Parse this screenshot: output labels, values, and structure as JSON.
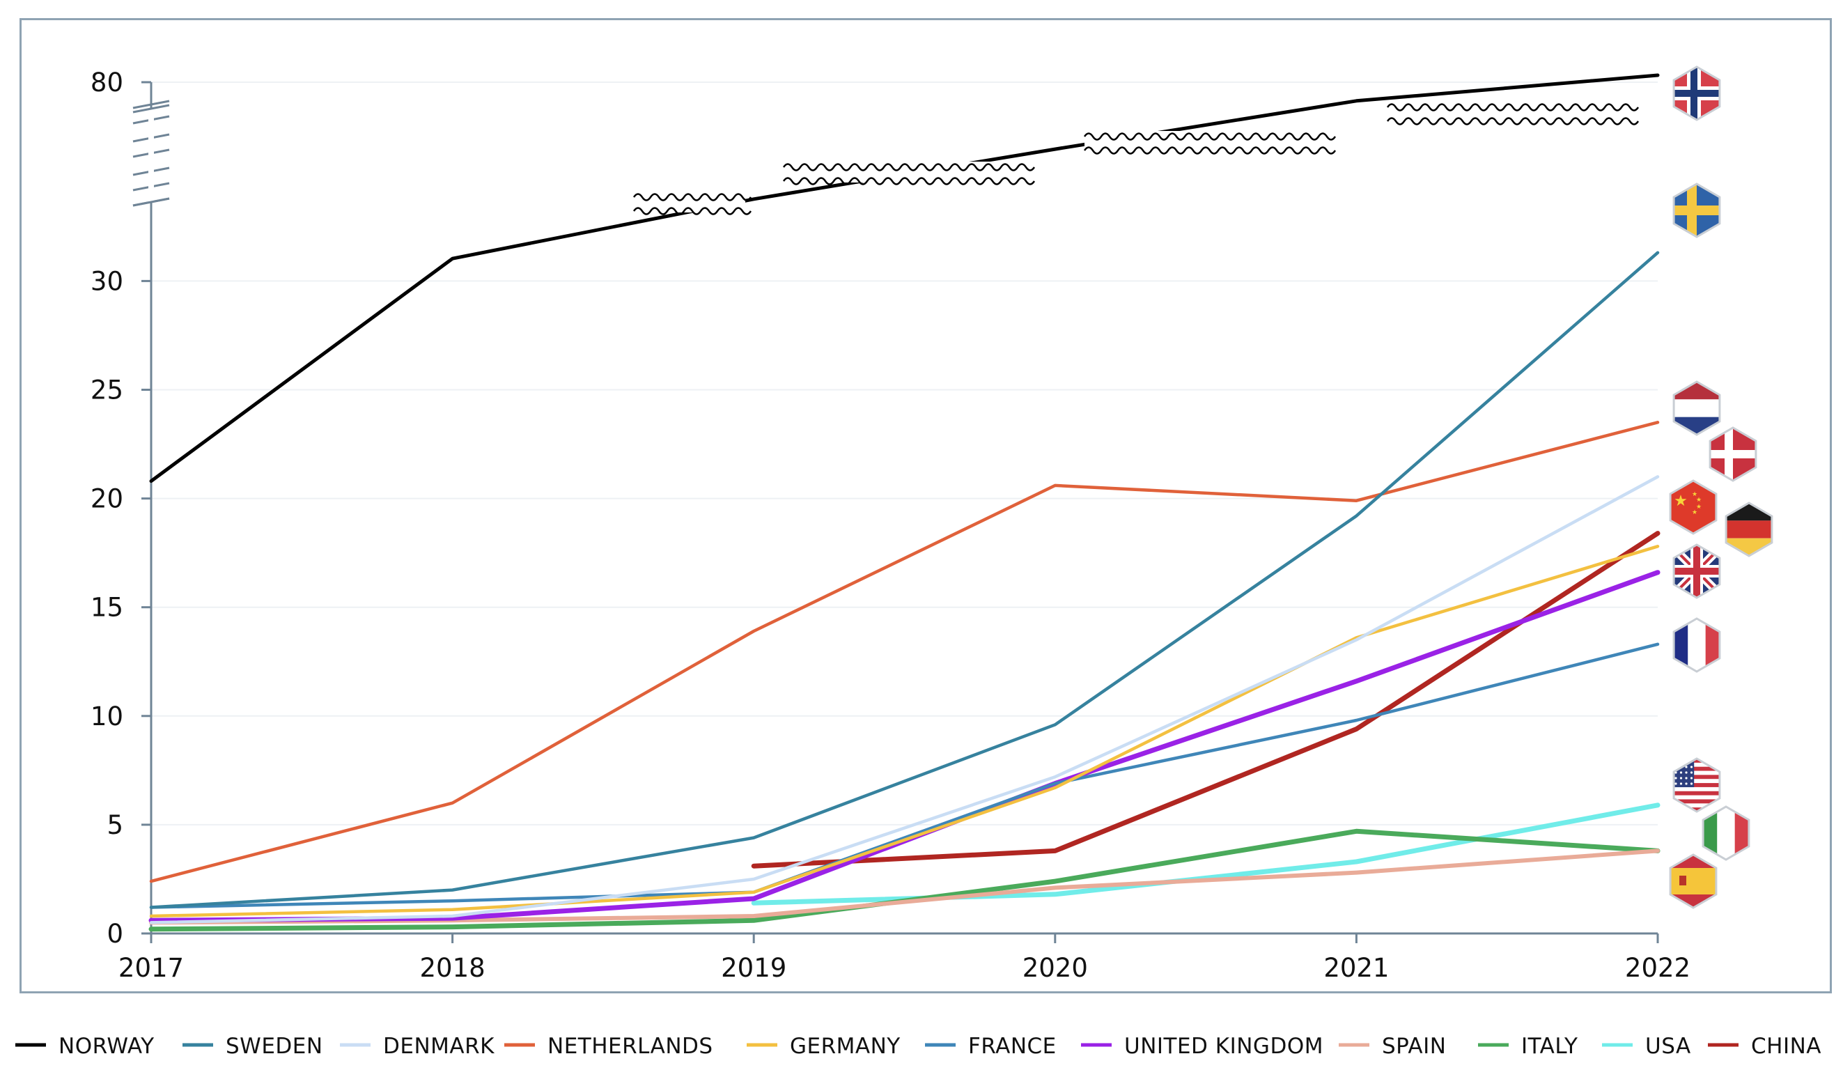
{
  "chart_data": {
    "type": "line",
    "title": "",
    "xlabel": "",
    "ylabel": "",
    "x": [
      2017,
      2018,
      2019,
      2020,
      2021,
      2022
    ],
    "x_tick_labels": [
      "2017",
      "2018",
      "2019",
      "2020",
      "2021",
      "2022"
    ],
    "y_ticks": [
      0,
      5,
      10,
      15,
      20,
      25,
      30,
      80
    ],
    "y_tick_labels": [
      "0",
      "5",
      "10",
      "15",
      "20",
      "25",
      "30",
      "80"
    ],
    "y_axis_break": true,
    "ylim": [
      0,
      80
    ],
    "grid": "horizontal",
    "legend_position": "bottom",
    "series": [
      {
        "name": "NORWAY",
        "color": "#000000",
        "values": [
          20.8,
          31.2,
          49.3,
          64.5,
          79.2,
          87.0
        ]
      },
      {
        "name": "SWEDEN",
        "color": "#36829e",
        "values": [
          1.2,
          2.0,
          4.4,
          9.6,
          19.2,
          33.0
        ]
      },
      {
        "name": "DENMARK",
        "color": "#c9ddf4",
        "values": [
          0.5,
          0.8,
          2.5,
          7.2,
          13.5,
          21.0
        ]
      },
      {
        "name": "NETHERLANDS",
        "color": "#e0613a",
        "values": [
          2.4,
          6.0,
          13.9,
          20.6,
          19.9,
          23.5
        ]
      },
      {
        "name": "GERMANY",
        "color": "#f3c040",
        "values": [
          0.8,
          1.1,
          1.9,
          6.7,
          13.6,
          17.8
        ]
      },
      {
        "name": "FRANCE",
        "color": "#3f86b8",
        "values": [
          1.2,
          1.5,
          1.9,
          6.9,
          9.8,
          13.3
        ]
      },
      {
        "name": "UNITED KINGDOM",
        "color": "#9a22e6",
        "values": [
          0.6,
          0.7,
          1.6,
          6.9,
          11.6,
          16.6
        ]
      },
      {
        "name": "SPAIN",
        "color": "#e9ab98",
        "values": [
          0.5,
          0.6,
          0.8,
          2.1,
          2.8,
          3.8
        ]
      },
      {
        "name": "ITALY",
        "color": "#4aaa5b",
        "values": [
          0.2,
          0.3,
          0.6,
          2.4,
          4.7,
          3.8
        ]
      },
      {
        "name": "USA",
        "color": "#70ece9",
        "values": [
          null,
          null,
          1.4,
          1.8,
          3.3,
          5.9
        ]
      },
      {
        "name": "CHINA",
        "color": "#b02621",
        "values": [
          null,
          null,
          3.1,
          3.8,
          9.4,
          18.4
        ]
      }
    ],
    "flags": [
      {
        "country": "NORWAY",
        "icon": "norway-flag-icon"
      },
      {
        "country": "SWEDEN",
        "icon": "sweden-flag-icon"
      },
      {
        "country": "NETHERLANDS",
        "icon": "netherlands-flag-icon"
      },
      {
        "country": "DENMARK",
        "icon": "denmark-flag-icon"
      },
      {
        "country": "CHINA",
        "icon": "china-flag-icon"
      },
      {
        "country": "GERMANY",
        "icon": "germany-flag-icon"
      },
      {
        "country": "UNITED KINGDOM",
        "icon": "uk-flag-icon"
      },
      {
        "country": "FRANCE",
        "icon": "france-flag-icon"
      },
      {
        "country": "USA",
        "icon": "usa-flag-icon"
      },
      {
        "country": "ITALY",
        "icon": "italy-flag-icon"
      },
      {
        "country": "SPAIN",
        "icon": "spain-flag-icon"
      }
    ]
  }
}
